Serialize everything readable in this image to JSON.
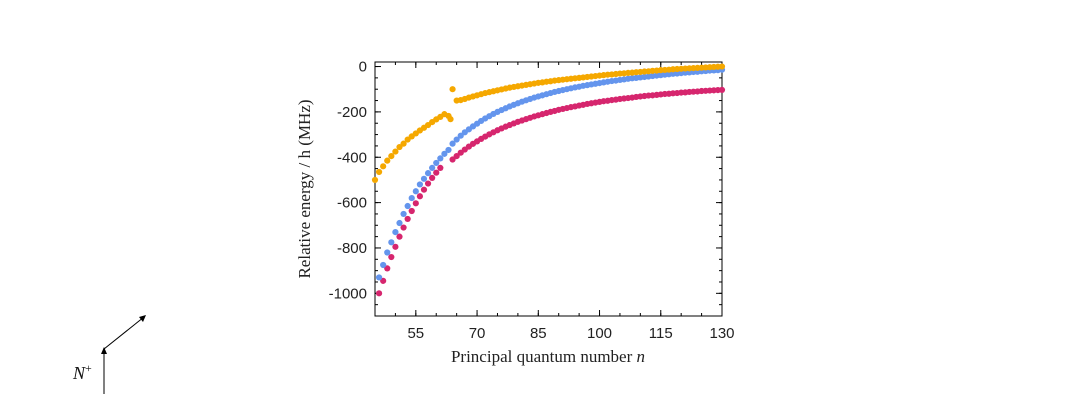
{
  "chart_data": {
    "type": "scatter",
    "title": "",
    "xlabel": "Principal quantum number",
    "xlabel_var": "n",
    "ylabel": "Relative energy / h (MHz)",
    "xlim": [
      45,
      130
    ],
    "ylim": [
      -1100,
      20
    ],
    "x_ticks": [
      55,
      70,
      85,
      100,
      115,
      130
    ],
    "y_ticks": [
      0,
      -200,
      -400,
      -600,
      -800,
      -1000
    ],
    "series": [
      {
        "name": "orange",
        "color": "#f5a800",
        "points": [
          [
            45,
            -500
          ],
          [
            46,
            -465
          ],
          [
            47,
            -440
          ],
          [
            48,
            -415
          ],
          [
            49,
            -395
          ],
          [
            50,
            -375
          ],
          [
            51,
            -355
          ],
          [
            52,
            -340
          ],
          [
            53,
            -322
          ],
          [
            54,
            -308
          ],
          [
            55,
            -295
          ],
          [
            56,
            -282
          ],
          [
            57,
            -270
          ],
          [
            58,
            -258
          ],
          [
            59,
            -245
          ],
          [
            60,
            -233
          ],
          [
            61,
            -222
          ],
          [
            62,
            -210
          ],
          [
            63,
            -218
          ],
          [
            63.5,
            -232
          ],
          [
            64,
            -100
          ],
          [
            65,
            -150
          ],
          [
            66,
            -148
          ],
          [
            67,
            -143
          ],
          [
            68,
            -137
          ],
          [
            69,
            -132
          ],
          [
            70,
            -127
          ],
          [
            71,
            -122
          ],
          [
            72,
            -117
          ],
          [
            73,
            -113
          ],
          [
            74,
            -109
          ],
          [
            75,
            -105
          ],
          [
            76,
            -101
          ],
          [
            77,
            -97
          ],
          [
            78,
            -93
          ],
          [
            79,
            -90
          ],
          [
            80,
            -87
          ],
          [
            81,
            -84
          ],
          [
            82,
            -81
          ],
          [
            83,
            -78
          ],
          [
            84,
            -75
          ],
          [
            85,
            -72
          ],
          [
            86,
            -70
          ],
          [
            87,
            -67
          ],
          [
            88,
            -65
          ],
          [
            89,
            -62
          ],
          [
            90,
            -60
          ],
          [
            91,
            -58
          ],
          [
            92,
            -56
          ],
          [
            93,
            -54
          ],
          [
            94,
            -52
          ],
          [
            95,
            -50
          ],
          [
            96,
            -48
          ],
          [
            97,
            -46
          ],
          [
            98,
            -44
          ],
          [
            99,
            -42
          ],
          [
            100,
            -40
          ],
          [
            101,
            -38
          ],
          [
            102,
            -36
          ],
          [
            103,
            -35
          ],
          [
            104,
            -33
          ],
          [
            105,
            -31
          ],
          [
            106,
            -30
          ],
          [
            107,
            -28
          ],
          [
            108,
            -27
          ],
          [
            109,
            -25
          ],
          [
            110,
            -24
          ],
          [
            111,
            -22
          ],
          [
            112,
            -21
          ],
          [
            113,
            -19
          ],
          [
            114,
            -18
          ],
          [
            115,
            -16
          ],
          [
            116,
            -15
          ],
          [
            117,
            -14
          ],
          [
            118,
            -12
          ],
          [
            119,
            -11
          ],
          [
            120,
            -10
          ],
          [
            121,
            -9
          ],
          [
            122,
            -8
          ],
          [
            123,
            -7
          ],
          [
            124,
            -6
          ],
          [
            125,
            -5
          ],
          [
            126,
            -4
          ],
          [
            127,
            -3
          ],
          [
            128,
            -2
          ],
          [
            129,
            -1
          ],
          [
            130,
            0
          ]
        ]
      },
      {
        "name": "blue",
        "color": "#6495ed",
        "points": [
          [
            46,
            -930
          ],
          [
            47,
            -875
          ],
          [
            48,
            -820
          ],
          [
            49,
            -775
          ],
          [
            50,
            -730
          ],
          [
            51,
            -690
          ],
          [
            52,
            -650
          ],
          [
            53,
            -615
          ],
          [
            54,
            -580
          ],
          [
            55,
            -550
          ],
          [
            56,
            -520
          ],
          [
            57,
            -495
          ],
          [
            58,
            -470
          ],
          [
            59,
            -447
          ],
          [
            60,
            -425
          ],
          [
            61,
            -405
          ],
          [
            62,
            -385
          ],
          [
            63,
            -368
          ],
          [
            64,
            -340
          ],
          [
            65,
            -322
          ],
          [
            66,
            -305
          ],
          [
            67,
            -290
          ],
          [
            68,
            -277
          ],
          [
            69,
            -264
          ],
          [
            70,
            -252
          ],
          [
            71,
            -240
          ],
          [
            72,
            -229
          ],
          [
            73,
            -219
          ],
          [
            74,
            -209
          ],
          [
            75,
            -200
          ],
          [
            76,
            -192
          ],
          [
            77,
            -184
          ],
          [
            78,
            -176
          ],
          [
            79,
            -169
          ],
          [
            80,
            -162
          ],
          [
            81,
            -155
          ],
          [
            82,
            -149
          ],
          [
            83,
            -143
          ],
          [
            84,
            -137
          ],
          [
            85,
            -132
          ],
          [
            86,
            -127
          ],
          [
            87,
            -122
          ],
          [
            88,
            -117
          ],
          [
            89,
            -112
          ],
          [
            90,
            -108
          ],
          [
            91,
            -104
          ],
          [
            92,
            -100
          ],
          [
            93,
            -96
          ],
          [
            94,
            -92
          ],
          [
            95,
            -89
          ],
          [
            96,
            -85
          ],
          [
            97,
            -82
          ],
          [
            98,
            -79
          ],
          [
            99,
            -76
          ],
          [
            100,
            -73
          ],
          [
            101,
            -70
          ],
          [
            102,
            -67
          ],
          [
            103,
            -64
          ],
          [
            104,
            -62
          ],
          [
            105,
            -59
          ],
          [
            106,
            -57
          ],
          [
            107,
            -54
          ],
          [
            108,
            -52
          ],
          [
            109,
            -50
          ],
          [
            110,
            -48
          ],
          [
            111,
            -46
          ],
          [
            112,
            -44
          ],
          [
            113,
            -42
          ],
          [
            114,
            -40
          ],
          [
            115,
            -38
          ],
          [
            116,
            -36
          ],
          [
            117,
            -34
          ],
          [
            118,
            -32
          ],
          [
            119,
            -31
          ],
          [
            120,
            -29
          ],
          [
            121,
            -27
          ],
          [
            122,
            -26
          ],
          [
            123,
            -24
          ],
          [
            124,
            -23
          ],
          [
            125,
            -21
          ],
          [
            126,
            -20
          ],
          [
            127,
            -18
          ],
          [
            128,
            -17
          ],
          [
            129,
            -16
          ],
          [
            130,
            -14
          ]
        ]
      },
      {
        "name": "magenta",
        "color": "#d6266e",
        "points": [
          [
            46,
            -1000
          ],
          [
            47,
            -945
          ],
          [
            48,
            -890
          ],
          [
            49,
            -840
          ],
          [
            50,
            -795
          ],
          [
            51,
            -750
          ],
          [
            52,
            -710
          ],
          [
            53,
            -672
          ],
          [
            54,
            -637
          ],
          [
            55,
            -603
          ],
          [
            56,
            -572
          ],
          [
            57,
            -543
          ],
          [
            58,
            -516
          ],
          [
            59,
            -491
          ],
          [
            60,
            -468
          ],
          [
            61,
            -447
          ],
          [
            64,
            -410
          ],
          [
            65,
            -395
          ],
          [
            66,
            -380
          ],
          [
            67,
            -366
          ],
          [
            68,
            -353
          ],
          [
            69,
            -341
          ],
          [
            70,
            -330
          ],
          [
            71,
            -319
          ],
          [
            72,
            -309
          ],
          [
            73,
            -299
          ],
          [
            74,
            -290
          ],
          [
            75,
            -281
          ],
          [
            76,
            -273
          ],
          [
            77,
            -265
          ],
          [
            78,
            -258
          ],
          [
            79,
            -251
          ],
          [
            80,
            -244
          ],
          [
            81,
            -238
          ],
          [
            82,
            -232
          ],
          [
            83,
            -226
          ],
          [
            84,
            -220
          ],
          [
            85,
            -215
          ],
          [
            86,
            -210
          ],
          [
            87,
            -205
          ],
          [
            88,
            -200
          ],
          [
            89,
            -196
          ],
          [
            90,
            -191
          ],
          [
            91,
            -187
          ],
          [
            92,
            -183
          ],
          [
            93,
            -179
          ],
          [
            94,
            -176
          ],
          [
            95,
            -172
          ],
          [
            96,
            -169
          ],
          [
            97,
            -165
          ],
          [
            98,
            -162
          ],
          [
            99,
            -159
          ],
          [
            100,
            -156
          ],
          [
            101,
            -153
          ],
          [
            102,
            -151
          ],
          [
            103,
            -148
          ],
          [
            104,
            -146
          ],
          [
            105,
            -143
          ],
          [
            106,
            -141
          ],
          [
            107,
            -139
          ],
          [
            108,
            -137
          ],
          [
            109,
            -134
          ],
          [
            110,
            -132
          ],
          [
            111,
            -130
          ],
          [
            112,
            -128
          ],
          [
            113,
            -127
          ],
          [
            114,
            -125
          ],
          [
            115,
            -123
          ],
          [
            116,
            -121
          ],
          [
            117,
            -120
          ],
          [
            118,
            -118
          ],
          [
            119,
            -117
          ],
          [
            120,
            -115
          ],
          [
            121,
            -114
          ],
          [
            122,
            -112
          ],
          [
            123,
            -111
          ],
          [
            124,
            -110
          ],
          [
            125,
            -108
          ],
          [
            126,
            -107
          ],
          [
            127,
            -106
          ],
          [
            128,
            -105
          ],
          [
            129,
            -104
          ],
          [
            130,
            -103
          ]
        ]
      }
    ]
  },
  "corner_label": {
    "base": "N",
    "superscript": "+"
  }
}
